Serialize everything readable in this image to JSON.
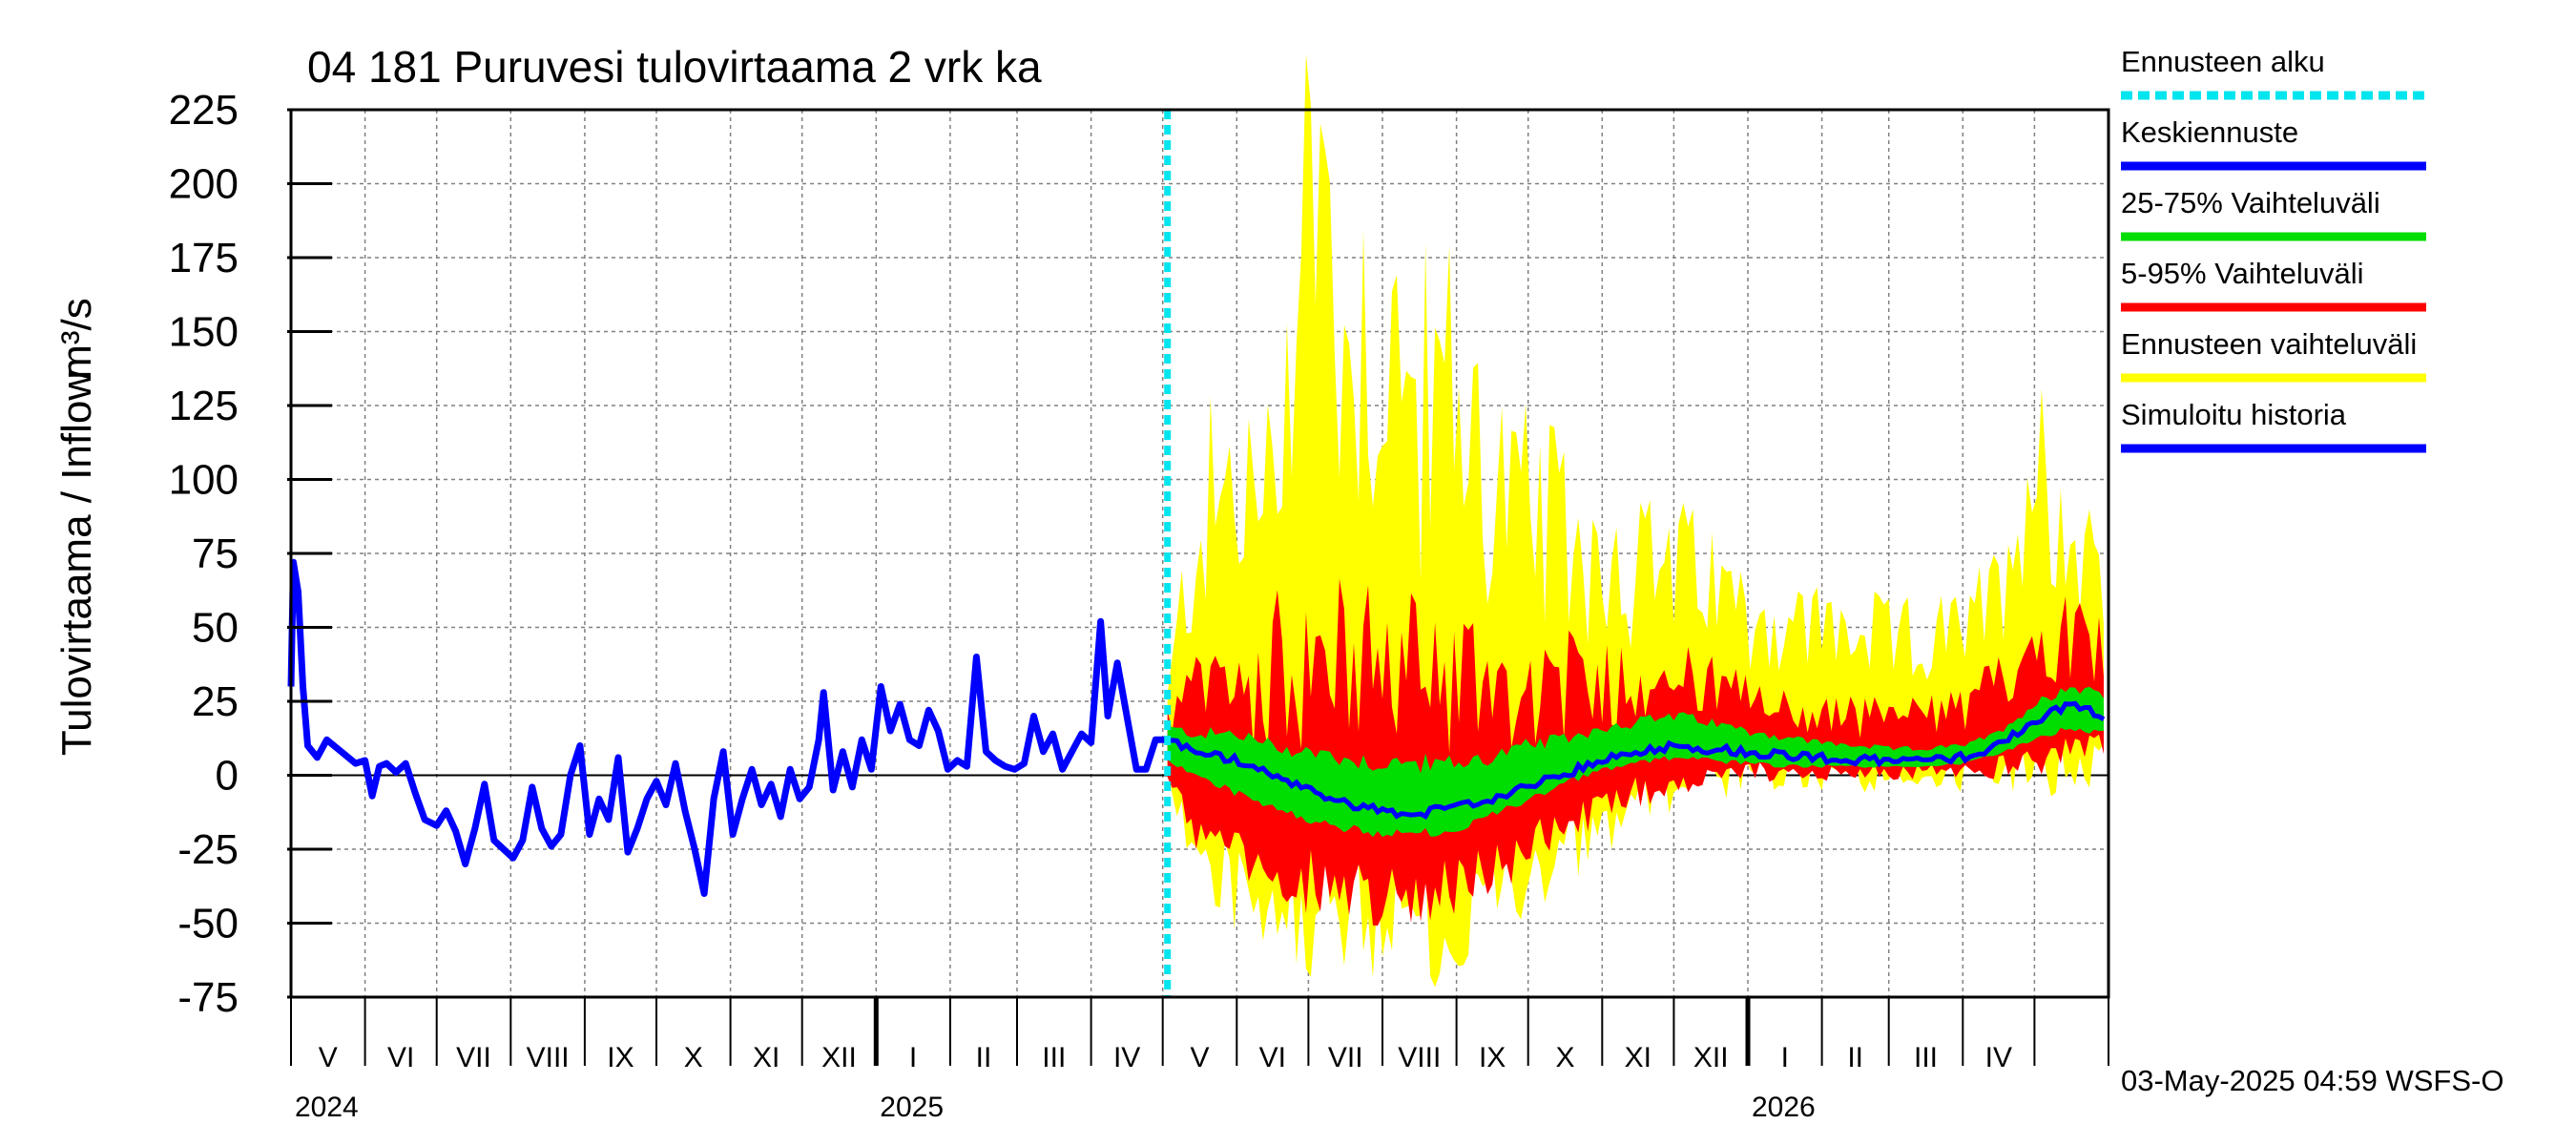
{
  "chart_data": {
    "type": "area",
    "title": "04 181 Puruvesi tulovirtaama 2 vrk ka",
    "ylabel": "Tulovirtaama / Inflow",
    "yunit": "m³/s",
    "ylim": [
      -75,
      225
    ],
    "yticks": [
      "225",
      "200",
      "175",
      "150",
      "125",
      "100",
      "75",
      "50",
      "25",
      "0",
      "-25",
      "-50",
      "-75"
    ],
    "x_axis": {
      "start": "2024-05-01",
      "end": "2026-05-31"
    },
    "forecast_start": "2025-05-03",
    "months": [
      "V",
      "VI",
      "VII",
      "VIII",
      "IX",
      "X",
      "XI",
      "XII",
      "I",
      "II",
      "III",
      "IV",
      "V",
      "VI",
      "VII",
      "VIII",
      "IX",
      "X",
      "XI",
      "XII",
      "I",
      "II",
      "III",
      "IV"
    ],
    "years": [
      {
        "label": "2024",
        "date": "2024-05-01"
      },
      {
        "label": "2025",
        "date": "2025-01-01"
      },
      {
        "label": "2026",
        "date": "2026-01-01"
      }
    ],
    "legend": [
      {
        "label": "Ennusteen alku",
        "color": "#00e5ee",
        "dashed": true
      },
      {
        "label": "Keskiennuste",
        "color": "#0000ff"
      },
      {
        "label": "25-75% Vaihteluväli",
        "color": "#00dd00"
      },
      {
        "label": "5-95% Vaihteluväli",
        "color": "#ff0000"
      },
      {
        "label": "Ennusteen vaihteluväli",
        "color": "#ffff00"
      },
      {
        "label": "Simuloitu historia",
        "color": "#0000ff"
      }
    ],
    "history": {
      "name": "Simuloitu historia",
      "points": [
        [
          "2024-05-01",
          30
        ],
        [
          "2024-05-02",
          72
        ],
        [
          "2024-05-04",
          62
        ],
        [
          "2024-05-06",
          30
        ],
        [
          "2024-05-08",
          10
        ],
        [
          "2024-05-12",
          6
        ],
        [
          "2024-05-16",
          12
        ],
        [
          "2024-05-22",
          8
        ],
        [
          "2024-05-28",
          4
        ],
        [
          "2024-06-01",
          5
        ],
        [
          "2024-06-04",
          -7
        ],
        [
          "2024-06-07",
          3
        ],
        [
          "2024-06-10",
          4
        ],
        [
          "2024-06-14",
          1
        ],
        [
          "2024-06-18",
          4
        ],
        [
          "2024-06-22",
          -6
        ],
        [
          "2024-06-26",
          -15
        ],
        [
          "2024-07-01",
          -17
        ],
        [
          "2024-07-05",
          -12
        ],
        [
          "2024-07-09",
          -19
        ],
        [
          "2024-07-13",
          -30
        ],
        [
          "2024-07-17",
          -18
        ],
        [
          "2024-07-21",
          -3
        ],
        [
          "2024-07-25",
          -22
        ],
        [
          "2024-07-29",
          -25
        ],
        [
          "2024-08-02",
          -28
        ],
        [
          "2024-08-06",
          -22
        ],
        [
          "2024-08-10",
          -4
        ],
        [
          "2024-08-14",
          -18
        ],
        [
          "2024-08-18",
          -24
        ],
        [
          "2024-08-22",
          -20
        ],
        [
          "2024-08-26",
          0
        ],
        [
          "2024-08-30",
          10
        ],
        [
          "2024-09-03",
          -20
        ],
        [
          "2024-09-07",
          -8
        ],
        [
          "2024-09-11",
          -15
        ],
        [
          "2024-09-15",
          6
        ],
        [
          "2024-09-19",
          -26
        ],
        [
          "2024-09-23",
          -18
        ],
        [
          "2024-09-27",
          -8
        ],
        [
          "2024-10-01",
          -2
        ],
        [
          "2024-10-05",
          -10
        ],
        [
          "2024-10-09",
          4
        ],
        [
          "2024-10-13",
          -12
        ],
        [
          "2024-10-17",
          -25
        ],
        [
          "2024-10-21",
          -40
        ],
        [
          "2024-10-25",
          -8
        ],
        [
          "2024-10-29",
          8
        ],
        [
          "2024-11-02",
          -20
        ],
        [
          "2024-11-06",
          -8
        ],
        [
          "2024-11-10",
          2
        ],
        [
          "2024-11-14",
          -10
        ],
        [
          "2024-11-18",
          -3
        ],
        [
          "2024-11-22",
          -14
        ],
        [
          "2024-11-26",
          2
        ],
        [
          "2024-11-30",
          -8
        ],
        [
          "2024-12-04",
          -4
        ],
        [
          "2024-12-08",
          12
        ],
        [
          "2024-12-10",
          28
        ],
        [
          "2024-12-14",
          -5
        ],
        [
          "2024-12-18",
          8
        ],
        [
          "2024-12-22",
          -4
        ],
        [
          "2024-12-26",
          12
        ],
        [
          "2024-12-30",
          2
        ],
        [
          "2025-01-03",
          30
        ],
        [
          "2025-01-07",
          15
        ],
        [
          "2025-01-11",
          24
        ],
        [
          "2025-01-15",
          12
        ],
        [
          "2025-01-19",
          10
        ],
        [
          "2025-01-23",
          22
        ],
        [
          "2025-01-27",
          15
        ],
        [
          "2025-01-31",
          2
        ],
        [
          "2025-02-04",
          5
        ],
        [
          "2025-02-08",
          3
        ],
        [
          "2025-02-12",
          40
        ],
        [
          "2025-02-16",
          8
        ],
        [
          "2025-02-20",
          5
        ],
        [
          "2025-02-24",
          3
        ],
        [
          "2025-02-28",
          2
        ],
        [
          "2025-03-04",
          4
        ],
        [
          "2025-03-08",
          20
        ],
        [
          "2025-03-12",
          8
        ],
        [
          "2025-03-16",
          14
        ],
        [
          "2025-03-20",
          2
        ],
        [
          "2025-03-24",
          8
        ],
        [
          "2025-03-28",
          14
        ],
        [
          "2025-04-01",
          11
        ],
        [
          "2025-04-05",
          52
        ],
        [
          "2025-04-08",
          20
        ],
        [
          "2025-04-12",
          38
        ],
        [
          "2025-04-16",
          20
        ],
        [
          "2025-04-20",
          2
        ],
        [
          "2025-04-24",
          2
        ],
        [
          "2025-04-28",
          12
        ],
        [
          "2025-05-03",
          12
        ]
      ]
    },
    "forecast": {
      "dates": [
        "2025-05-03",
        "2025-05-15",
        "2025-06-01",
        "2025-06-15",
        "2025-07-01",
        "2025-07-15",
        "2025-08-01",
        "2025-08-15",
        "2025-09-01",
        "2025-09-15",
        "2025-10-01",
        "2025-10-15",
        "2025-11-01",
        "2025-11-15",
        "2025-12-01",
        "2025-12-15",
        "2026-01-01",
        "2026-01-15",
        "2026-02-01",
        "2026-02-15",
        "2026-03-01",
        "2026-03-15",
        "2026-04-01",
        "2026-04-15",
        "2026-05-01",
        "2026-05-15",
        "2026-05-31"
      ],
      "median": [
        12,
        8,
        5,
        0,
        -5,
        -9,
        -12,
        -13,
        -11,
        -8,
        -4,
        0,
        5,
        8,
        10,
        9,
        8,
        7,
        6,
        5,
        5,
        5,
        6,
        10,
        18,
        24,
        20
      ],
      "p25": [
        5,
        0,
        -6,
        -10,
        -15,
        -18,
        -20,
        -20,
        -18,
        -14,
        -8,
        -3,
        2,
        4,
        6,
        5,
        4,
        3,
        3,
        3,
        3,
        3,
        4,
        7,
        12,
        16,
        14
      ],
      "p75": [
        16,
        14,
        14,
        10,
        8,
        6,
        4,
        4,
        4,
        6,
        10,
        12,
        16,
        18,
        20,
        18,
        15,
        13,
        11,
        10,
        9,
        9,
        10,
        14,
        24,
        30,
        28
      ],
      "p05": [
        2,
        -20,
        -28,
        -32,
        -36,
        -38,
        -40,
        -40,
        -37,
        -32,
        -25,
        -18,
        -12,
        -6,
        -2,
        0,
        1,
        1,
        1,
        1,
        1,
        1,
        1,
        2,
        5,
        8,
        8
      ],
      "p95": [
        20,
        25,
        30,
        35,
        38,
        38,
        38,
        35,
        35,
        32,
        30,
        30,
        32,
        33,
        34,
        30,
        25,
        22,
        20,
        20,
        20,
        20,
        22,
        30,
        45,
        48,
        46
      ],
      "min": [
        0,
        -28,
        -38,
        -42,
        -45,
        -48,
        -50,
        -52,
        -48,
        -42,
        -34,
        -25,
        -18,
        -10,
        -5,
        -2,
        0,
        0,
        0,
        0,
        0,
        0,
        0,
        1,
        2,
        3,
        3
      ],
      "max": [
        25,
        85,
        95,
        88,
        215,
        150,
        145,
        120,
        130,
        100,
        85,
        80,
        75,
        70,
        70,
        65,
        55,
        50,
        50,
        48,
        45,
        45,
        48,
        60,
        110,
        80,
        75
      ]
    }
  },
  "footer": "03-May-2025 04:59 WSFS-O"
}
